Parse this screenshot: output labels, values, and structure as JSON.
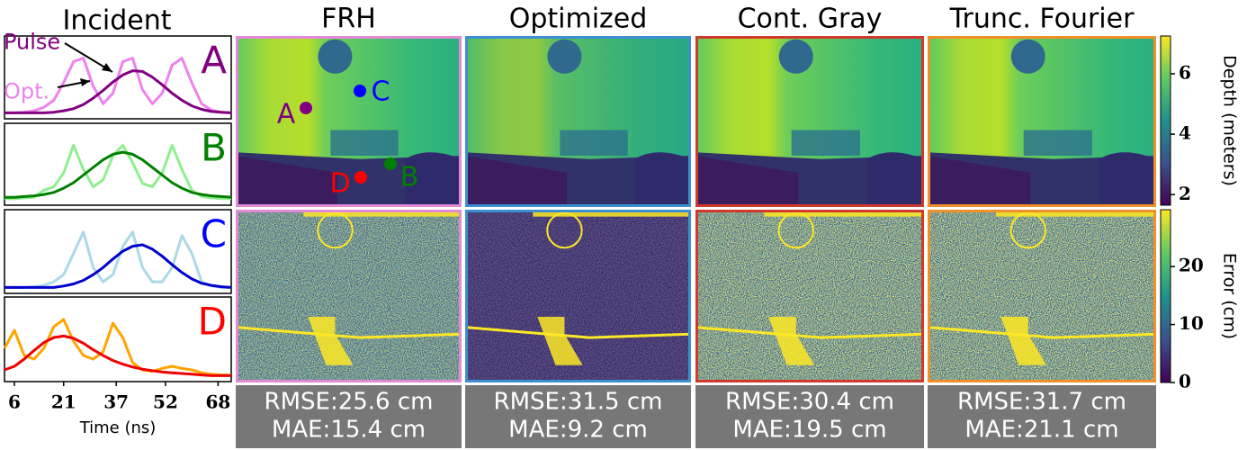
{
  "chart_data": [
    {
      "type": "line",
      "annotation": "A",
      "annotation_color": "#800080",
      "x": [
        3,
        6,
        9,
        12,
        15,
        18,
        21,
        24,
        27,
        30,
        33,
        36,
        39,
        42,
        45,
        48,
        51,
        54,
        57,
        60,
        63,
        66,
        69,
        72
      ],
      "xlim": [
        3,
        72
      ],
      "ylim": [
        0,
        1
      ],
      "series": [
        {
          "name": "Pulse",
          "color": "#800080",
          "values": [
            0.02,
            0.02,
            0.02,
            0.02,
            0.02,
            0.03,
            0.05,
            0.08,
            0.14,
            0.23,
            0.34,
            0.46,
            0.56,
            0.62,
            0.61,
            0.53,
            0.42,
            0.3,
            0.2,
            0.12,
            0.07,
            0.04,
            0.03,
            0.02
          ]
        },
        {
          "name": "Opt.",
          "color": "#ee82ee",
          "values": [
            0.02,
            0.02,
            0.03,
            0.05,
            0.1,
            0.2,
            0.45,
            0.75,
            0.8,
            0.4,
            0.15,
            0.3,
            0.75,
            0.8,
            0.35,
            0.15,
            0.3,
            0.7,
            0.8,
            0.45,
            0.15,
            0.06,
            0.03,
            0.02
          ]
        }
      ]
    },
    {
      "type": "line",
      "annotation": "B",
      "annotation_color": "#008000",
      "x": [
        3,
        6,
        9,
        12,
        15,
        18,
        21,
        24,
        27,
        30,
        33,
        36,
        39,
        42,
        45,
        48,
        51,
        54,
        57,
        60,
        63,
        66,
        69,
        72
      ],
      "xlim": [
        3,
        72
      ],
      "ylim": [
        0,
        1
      ],
      "series": [
        {
          "color": "#008000",
          "values": [
            0.05,
            0.05,
            0.06,
            0.07,
            0.09,
            0.12,
            0.18,
            0.26,
            0.37,
            0.48,
            0.59,
            0.67,
            0.7,
            0.67,
            0.59,
            0.48,
            0.37,
            0.26,
            0.18,
            0.12,
            0.09,
            0.07,
            0.06,
            0.05
          ]
        },
        {
          "color": "#90ee90",
          "values": [
            0.03,
            0.03,
            0.04,
            0.05,
            0.15,
            0.2,
            0.4,
            0.8,
            0.45,
            0.2,
            0.3,
            0.65,
            0.8,
            0.55,
            0.25,
            0.2,
            0.4,
            0.8,
            0.45,
            0.15,
            0.06,
            0.04,
            0.03,
            0.03
          ]
        }
      ]
    },
    {
      "type": "line",
      "annotation": "C",
      "annotation_color": "#0000ff",
      "x": [
        3,
        6,
        9,
        12,
        15,
        18,
        21,
        24,
        27,
        30,
        33,
        36,
        39,
        42,
        45,
        48,
        51,
        54,
        57,
        60,
        63,
        66,
        69,
        72
      ],
      "xlim": [
        3,
        72
      ],
      "ylim": [
        0,
        1
      ],
      "series": [
        {
          "color": "#0000cd",
          "values": [
            0.02,
            0.02,
            0.02,
            0.02,
            0.02,
            0.02,
            0.04,
            0.07,
            0.12,
            0.2,
            0.3,
            0.42,
            0.53,
            0.6,
            0.62,
            0.56,
            0.46,
            0.34,
            0.23,
            0.14,
            0.08,
            0.05,
            0.03,
            0.02
          ]
        },
        {
          "color": "#add8e6",
          "values": [
            0.02,
            0.02,
            0.02,
            0.03,
            0.05,
            0.1,
            0.2,
            0.5,
            0.8,
            0.3,
            0.1,
            0.2,
            0.6,
            0.8,
            0.3,
            0.1,
            0.1,
            0.3,
            0.75,
            0.5,
            0.1,
            0.04,
            0.02,
            0.02
          ]
        }
      ]
    },
    {
      "type": "line",
      "annotation": "D",
      "annotation_color": "#ff0000",
      "x": [
        3,
        6,
        9,
        12,
        15,
        18,
        21,
        24,
        27,
        30,
        33,
        36,
        39,
        42,
        45,
        48,
        51,
        54,
        57,
        60,
        63,
        66,
        69,
        72
      ],
      "xlim": [
        3,
        72
      ],
      "ylim": [
        0,
        1
      ],
      "xticks": [
        6,
        21,
        37,
        52,
        68
      ],
      "xlabel": "Time (ns)",
      "series": [
        {
          "color": "#ee0000",
          "values": [
            0.1,
            0.15,
            0.25,
            0.37,
            0.48,
            0.55,
            0.57,
            0.54,
            0.47,
            0.38,
            0.3,
            0.23,
            0.18,
            0.14,
            0.11,
            0.09,
            0.07,
            0.06,
            0.05,
            0.04,
            0.03,
            0.02,
            0.02,
            0.02
          ]
        },
        {
          "color": "#ffa500",
          "values": [
            0.4,
            0.65,
            0.3,
            0.25,
            0.4,
            0.7,
            0.8,
            0.5,
            0.3,
            0.25,
            0.35,
            0.75,
            0.55,
            0.2,
            0.1,
            0.08,
            0.12,
            0.15,
            0.12,
            0.1,
            0.06,
            0.04,
            0.03,
            0.03
          ]
        }
      ]
    }
  ],
  "figure": {
    "incident_title": "Incident",
    "columns": [
      {
        "title": "FRH",
        "border_color": "#e28ad6",
        "rmse": "RMSE:25.6 cm",
        "mae": "MAE:15.4 cm"
      },
      {
        "title": "Optimized",
        "border_color": "#3c8fd0",
        "rmse": "RMSE:31.5 cm",
        "mae": "MAE:9.2 cm"
      },
      {
        "title": "Cont. Gray",
        "border_color": "#d03a2c",
        "rmse": "RMSE:30.4 cm",
        "mae": "MAE:19.5 cm"
      },
      {
        "title": "Trunc. Fourier",
        "border_color": "#f0902a",
        "rmse": "RMSE:31.7 cm",
        "mae": "MAE:21.1 cm"
      }
    ],
    "point_labels": [
      {
        "text": "A",
        "color": "#800080"
      },
      {
        "text": "B",
        "color": "#008000"
      },
      {
        "text": "C",
        "color": "#0000ff"
      },
      {
        "text": "D",
        "color": "#ff0000"
      }
    ],
    "colorbars": [
      {
        "label": "Depth (meters)",
        "ylim": [
          1.65,
          7.25
        ],
        "yticks": [
          2,
          4,
          6
        ]
      },
      {
        "label": "Error (cm)",
        "ylim": [
          0,
          29.8
        ],
        "yticks": [
          0,
          10,
          20
        ]
      }
    ]
  }
}
